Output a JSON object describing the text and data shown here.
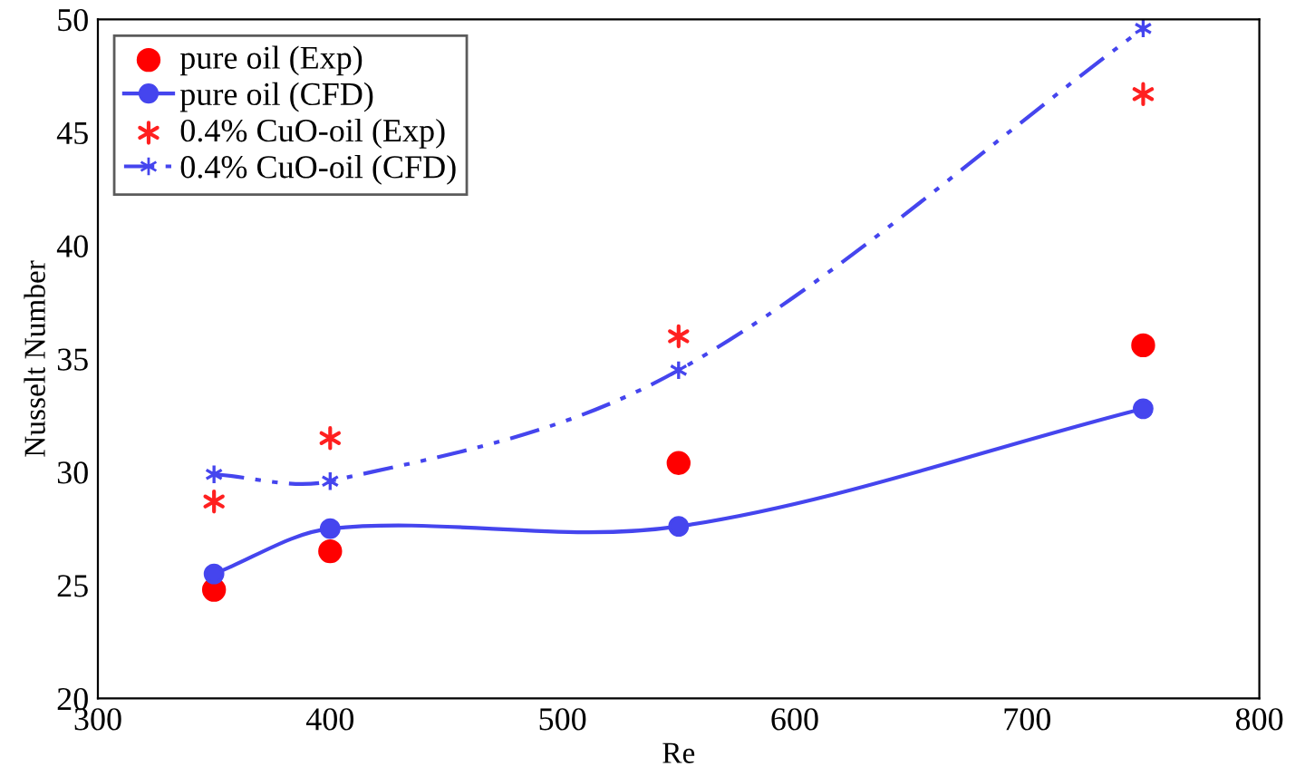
{
  "chart_data": {
    "type": "line",
    "xlabel": "Re",
    "ylabel": "Nusselt Number",
    "x": [
      350,
      400,
      550,
      750
    ],
    "series": [
      {
        "name": "pure oil (Exp)",
        "type": "scatter",
        "color": "#ff0000",
        "marker": "circle",
        "values": [
          24.8,
          26.5,
          30.4,
          35.6
        ]
      },
      {
        "name": "pure oil (CFD)",
        "color": "#4545ee",
        "marker": "circle",
        "line_style": "solid",
        "values": [
          25.5,
          27.5,
          27.6,
          32.8
        ]
      },
      {
        "name": "0.4% CuO-oil (Exp)",
        "type": "scatter",
        "color": "#ff2020",
        "marker": "cross",
        "values": [
          28.7,
          31.5,
          36.0,
          46.7
        ]
      },
      {
        "name": "0.4% CuO-oil (CFD)",
        "color": "#4545ee",
        "marker": "cross",
        "line_style": "dashdot",
        "values": [
          29.9,
          29.6,
          34.5,
          49.6
        ]
      }
    ],
    "xlim": [
      300,
      800
    ],
    "xticks": [
      300,
      400,
      500,
      600,
      700,
      800
    ],
    "ylim": [
      20,
      50
    ],
    "yticks": [
      20,
      25,
      30,
      35,
      40,
      45,
      50
    ],
    "grid": false,
    "legend": "top left"
  }
}
